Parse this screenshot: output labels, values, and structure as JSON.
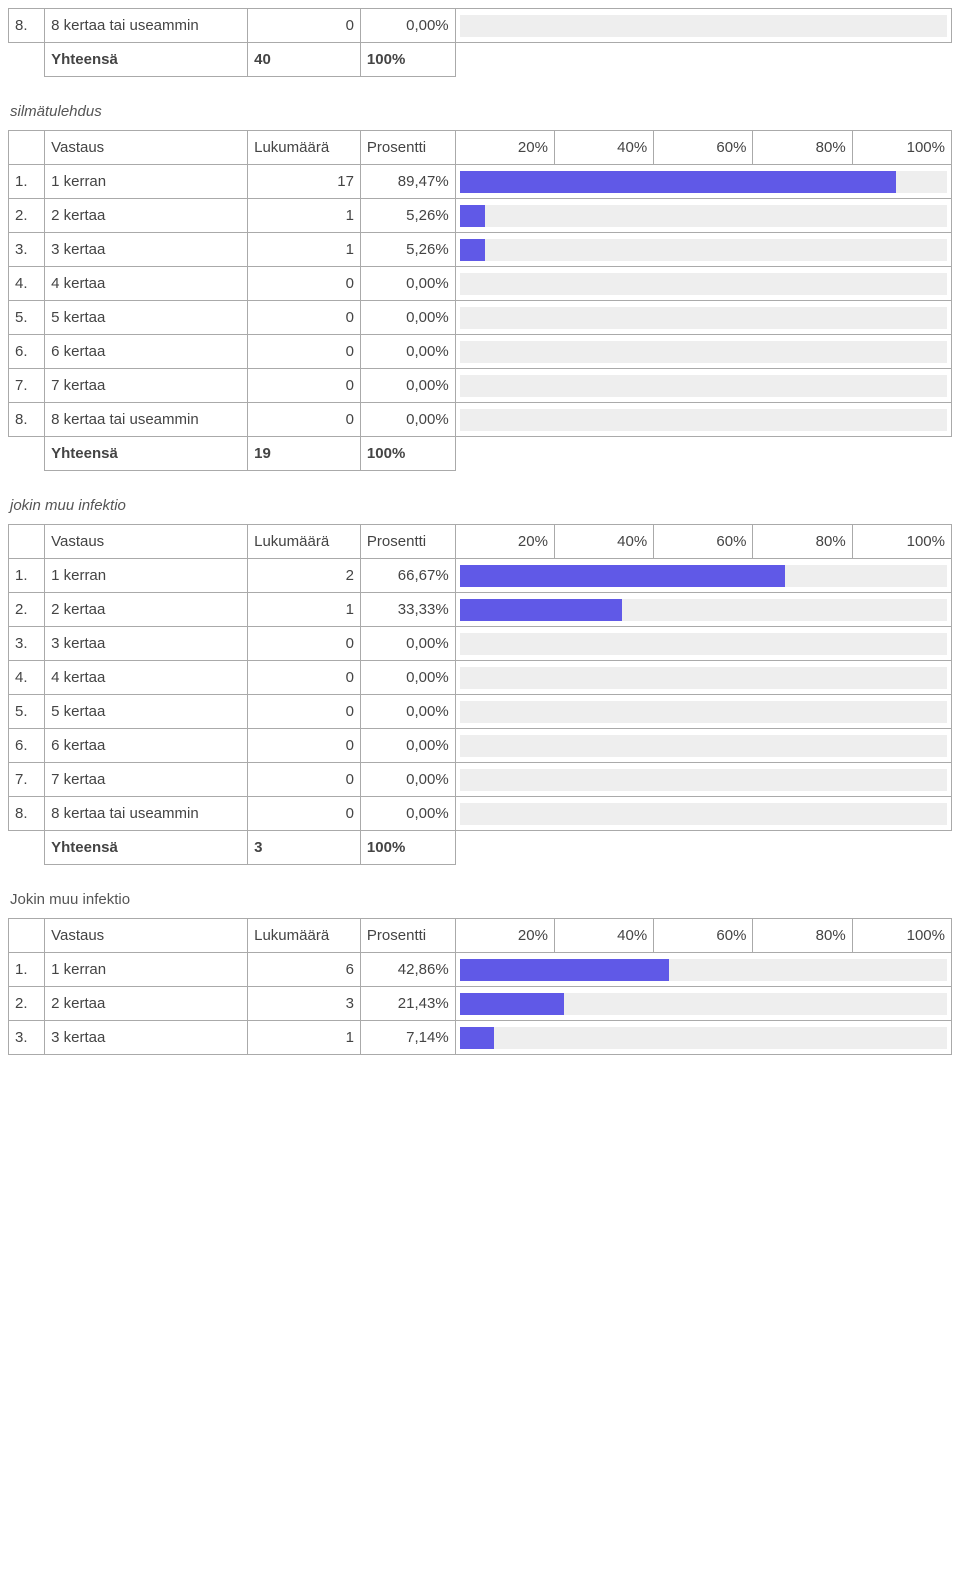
{
  "colors": {
    "border": "#aaaaaa",
    "bar_bg": "#eeeeee",
    "bar_fill": "#6059e7",
    "text": "#444444"
  },
  "chart": {
    "type": "bar",
    "xlim": [
      0,
      100
    ],
    "ticks": [
      "20%",
      "40%",
      "60%",
      "80%",
      "100%"
    ]
  },
  "headers": {
    "vastaus": "Vastaus",
    "lukumaara": "Lukumäärä",
    "prosentti": "Prosentti"
  },
  "total": {
    "label": "Yhteensä",
    "pct": "100%"
  },
  "frag": {
    "row": {
      "idx": "8.",
      "label": "8 kertaa tai useammin",
      "count": "0",
      "pct": "0,00%",
      "value": 0
    },
    "total_count": "40"
  },
  "sections": [
    {
      "title": "silmätulehdus",
      "italic": true,
      "rows": [
        {
          "idx": "1.",
          "label": "1 kerran",
          "count": "17",
          "pct": "89,47%",
          "value": 89.47
        },
        {
          "idx": "2.",
          "label": "2 kertaa",
          "count": "1",
          "pct": "5,26%",
          "value": 5.26
        },
        {
          "idx": "3.",
          "label": "3 kertaa",
          "count": "1",
          "pct": "5,26%",
          "value": 5.26
        },
        {
          "idx": "4.",
          "label": "4 kertaa",
          "count": "0",
          "pct": "0,00%",
          "value": 0
        },
        {
          "idx": "5.",
          "label": "5 kertaa",
          "count": "0",
          "pct": "0,00%",
          "value": 0
        },
        {
          "idx": "6.",
          "label": "6 kertaa",
          "count": "0",
          "pct": "0,00%",
          "value": 0
        },
        {
          "idx": "7.",
          "label": "7 kertaa",
          "count": "0",
          "pct": "0,00%",
          "value": 0
        },
        {
          "idx": "8.",
          "label": "8 kertaa tai useammin",
          "count": "0",
          "pct": "0,00%",
          "value": 0
        }
      ],
      "total_count": "19"
    },
    {
      "title": "jokin muu infektio",
      "italic": true,
      "rows": [
        {
          "idx": "1.",
          "label": "1 kerran",
          "count": "2",
          "pct": "66,67%",
          "value": 66.67
        },
        {
          "idx": "2.",
          "label": "2 kertaa",
          "count": "1",
          "pct": "33,33%",
          "value": 33.33
        },
        {
          "idx": "3.",
          "label": "3 kertaa",
          "count": "0",
          "pct": "0,00%",
          "value": 0
        },
        {
          "idx": "4.",
          "label": "4 kertaa",
          "count": "0",
          "pct": "0,00%",
          "value": 0
        },
        {
          "idx": "5.",
          "label": "5 kertaa",
          "count": "0",
          "pct": "0,00%",
          "value": 0
        },
        {
          "idx": "6.",
          "label": "6 kertaa",
          "count": "0",
          "pct": "0,00%",
          "value": 0
        },
        {
          "idx": "7.",
          "label": "7 kertaa",
          "count": "0",
          "pct": "0,00%",
          "value": 0
        },
        {
          "idx": "8.",
          "label": "8 kertaa tai useammin",
          "count": "0",
          "pct": "0,00%",
          "value": 0
        }
      ],
      "total_count": "3"
    },
    {
      "title": "Jokin muu infektio",
      "italic": false,
      "rows": [
        {
          "idx": "1.",
          "label": "1 kerran",
          "count": "6",
          "pct": "42,86%",
          "value": 42.86
        },
        {
          "idx": "2.",
          "label": "2 kertaa",
          "count": "3",
          "pct": "21,43%",
          "value": 21.43
        },
        {
          "idx": "3.",
          "label": "3 kertaa",
          "count": "1",
          "pct": "7,14%",
          "value": 7.14
        }
      ],
      "total_count": null
    }
  ]
}
